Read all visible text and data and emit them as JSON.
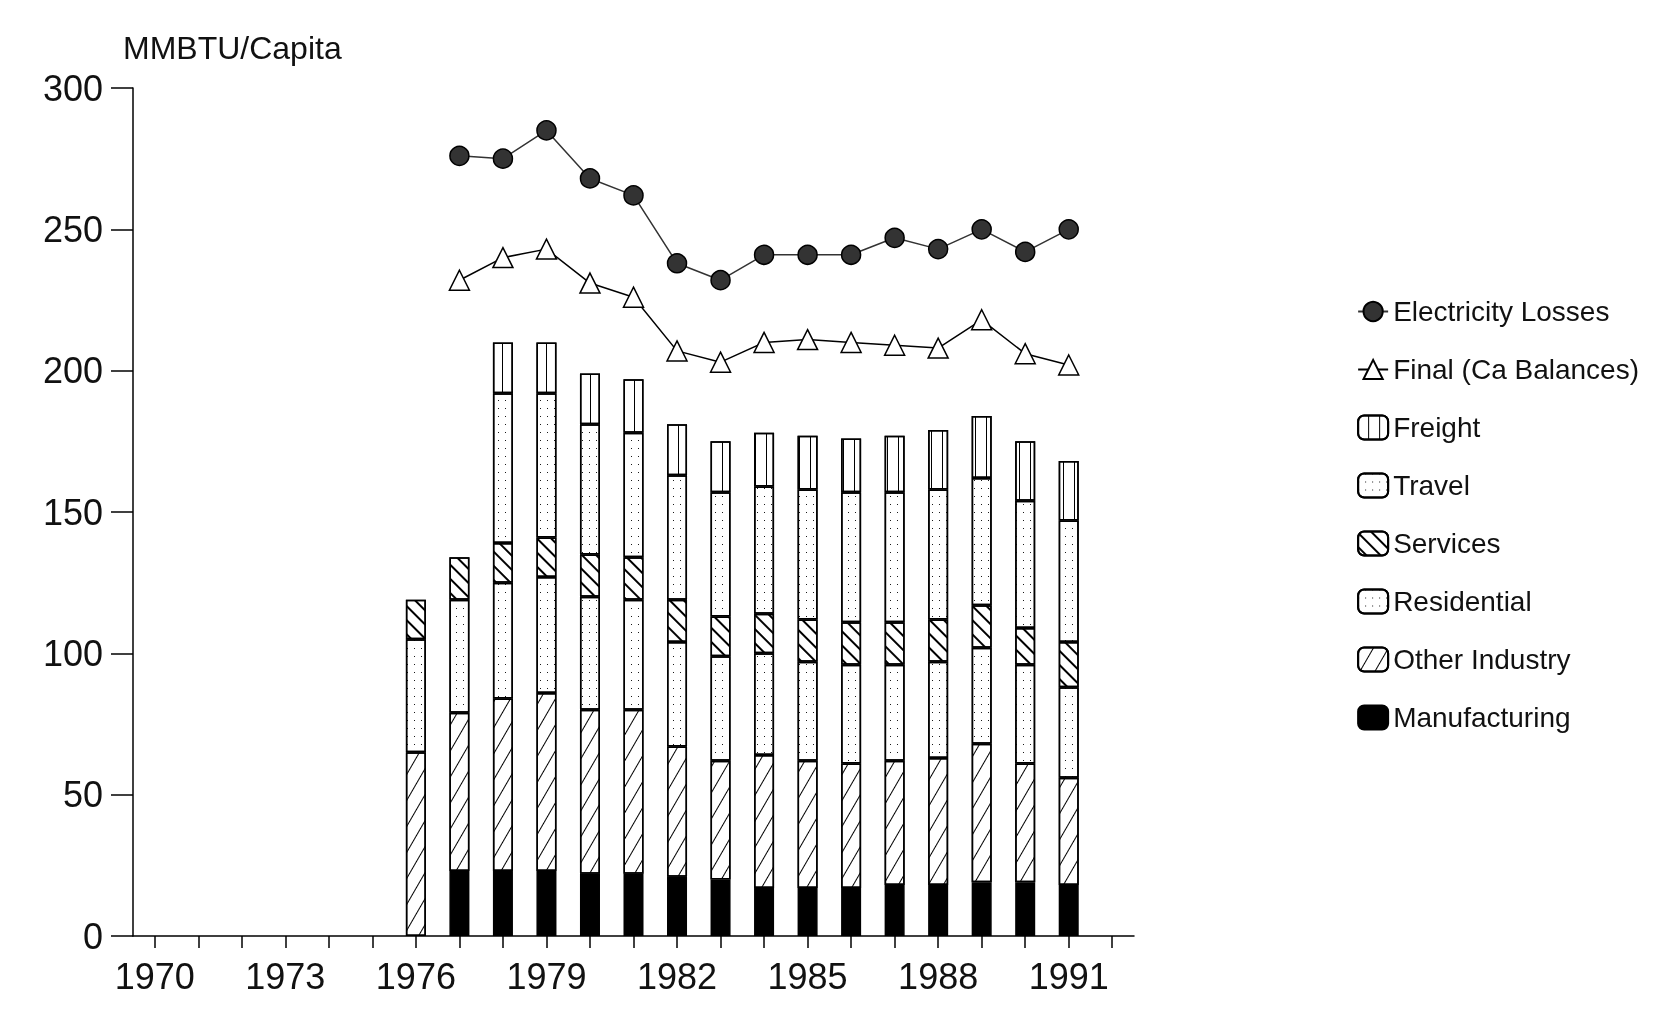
{
  "chart_data": {
    "type": "bar",
    "ylabel": "MMBTU/Capita",
    "stacked": true,
    "legend": "right",
    "grid": false,
    "ylim": [
      0,
      300
    ],
    "yticks": [
      0,
      50,
      100,
      150,
      200,
      250,
      300
    ],
    "categories": [
      "1970",
      null,
      null,
      "1973",
      null,
      null,
      "1976",
      null,
      null,
      "1979",
      null,
      null,
      "1982",
      null,
      null,
      "1985",
      null,
      null,
      "1988",
      null,
      null,
      "1991",
      null
    ],
    "series": [
      {
        "name": "Manufacturing",
        "color": "#000000",
        "values": [
          null,
          null,
          null,
          null,
          null,
          null,
          null,
          23,
          23,
          23,
          22,
          22,
          21,
          20,
          17,
          17,
          17,
          18,
          18,
          19,
          19,
          18,
          null
        ]
      },
      {
        "name": "Other Industry",
        "color": "#ffffff",
        "values": [
          null,
          null,
          null,
          null,
          null,
          null,
          65,
          56,
          61,
          63,
          58,
          58,
          46,
          42,
          47,
          45,
          44,
          44,
          45,
          49,
          42,
          38,
          null
        ]
      },
      {
        "name": "Residential",
        "color": "#ffffff",
        "values": [
          null,
          null,
          null,
          null,
          null,
          null,
          40,
          40,
          41,
          41,
          40,
          39,
          37,
          37,
          36,
          35,
          35,
          34,
          34,
          34,
          35,
          32,
          null
        ]
      },
      {
        "name": "Services",
        "color": "#ffffff",
        "values": [
          null,
          null,
          null,
          null,
          null,
          null,
          14,
          15,
          14,
          14,
          15,
          15,
          15,
          14,
          14,
          15,
          15,
          15,
          15,
          15,
          13,
          16,
          null
        ]
      },
      {
        "name": "Travel",
        "color": "#ffffff",
        "values": [
          null,
          null,
          null,
          null,
          null,
          null,
          null,
          null,
          53,
          51,
          46,
          44,
          44,
          44,
          45,
          46,
          46,
          46,
          46,
          45,
          45,
          43,
          null
        ]
      },
      {
        "name": "Freight",
        "color": "#ffffff",
        "values": [
          null,
          null,
          null,
          null,
          null,
          null,
          null,
          null,
          18,
          18,
          18,
          19,
          18,
          18,
          19,
          19,
          19,
          20,
          21,
          22,
          21,
          21,
          null
        ]
      },
      {
        "name": "Final (Ca Balances)",
        "type": "line",
        "marker": "triangle",
        "color": "#000000",
        "values": [
          null,
          null,
          null,
          null,
          null,
          null,
          null,
          232,
          240,
          243,
          231,
          226,
          207,
          203,
          210,
          211,
          210,
          209,
          208,
          218,
          206,
          202,
          null
        ]
      },
      {
        "name": "Electricity Losses",
        "type": "line",
        "marker": "circle",
        "color": "#333333",
        "values": [
          null,
          null,
          null,
          null,
          null,
          null,
          null,
          276,
          275,
          285,
          268,
          262,
          238,
          232,
          241,
          241,
          241,
          247,
          243,
          250,
          242,
          250,
          null
        ]
      }
    ]
  }
}
